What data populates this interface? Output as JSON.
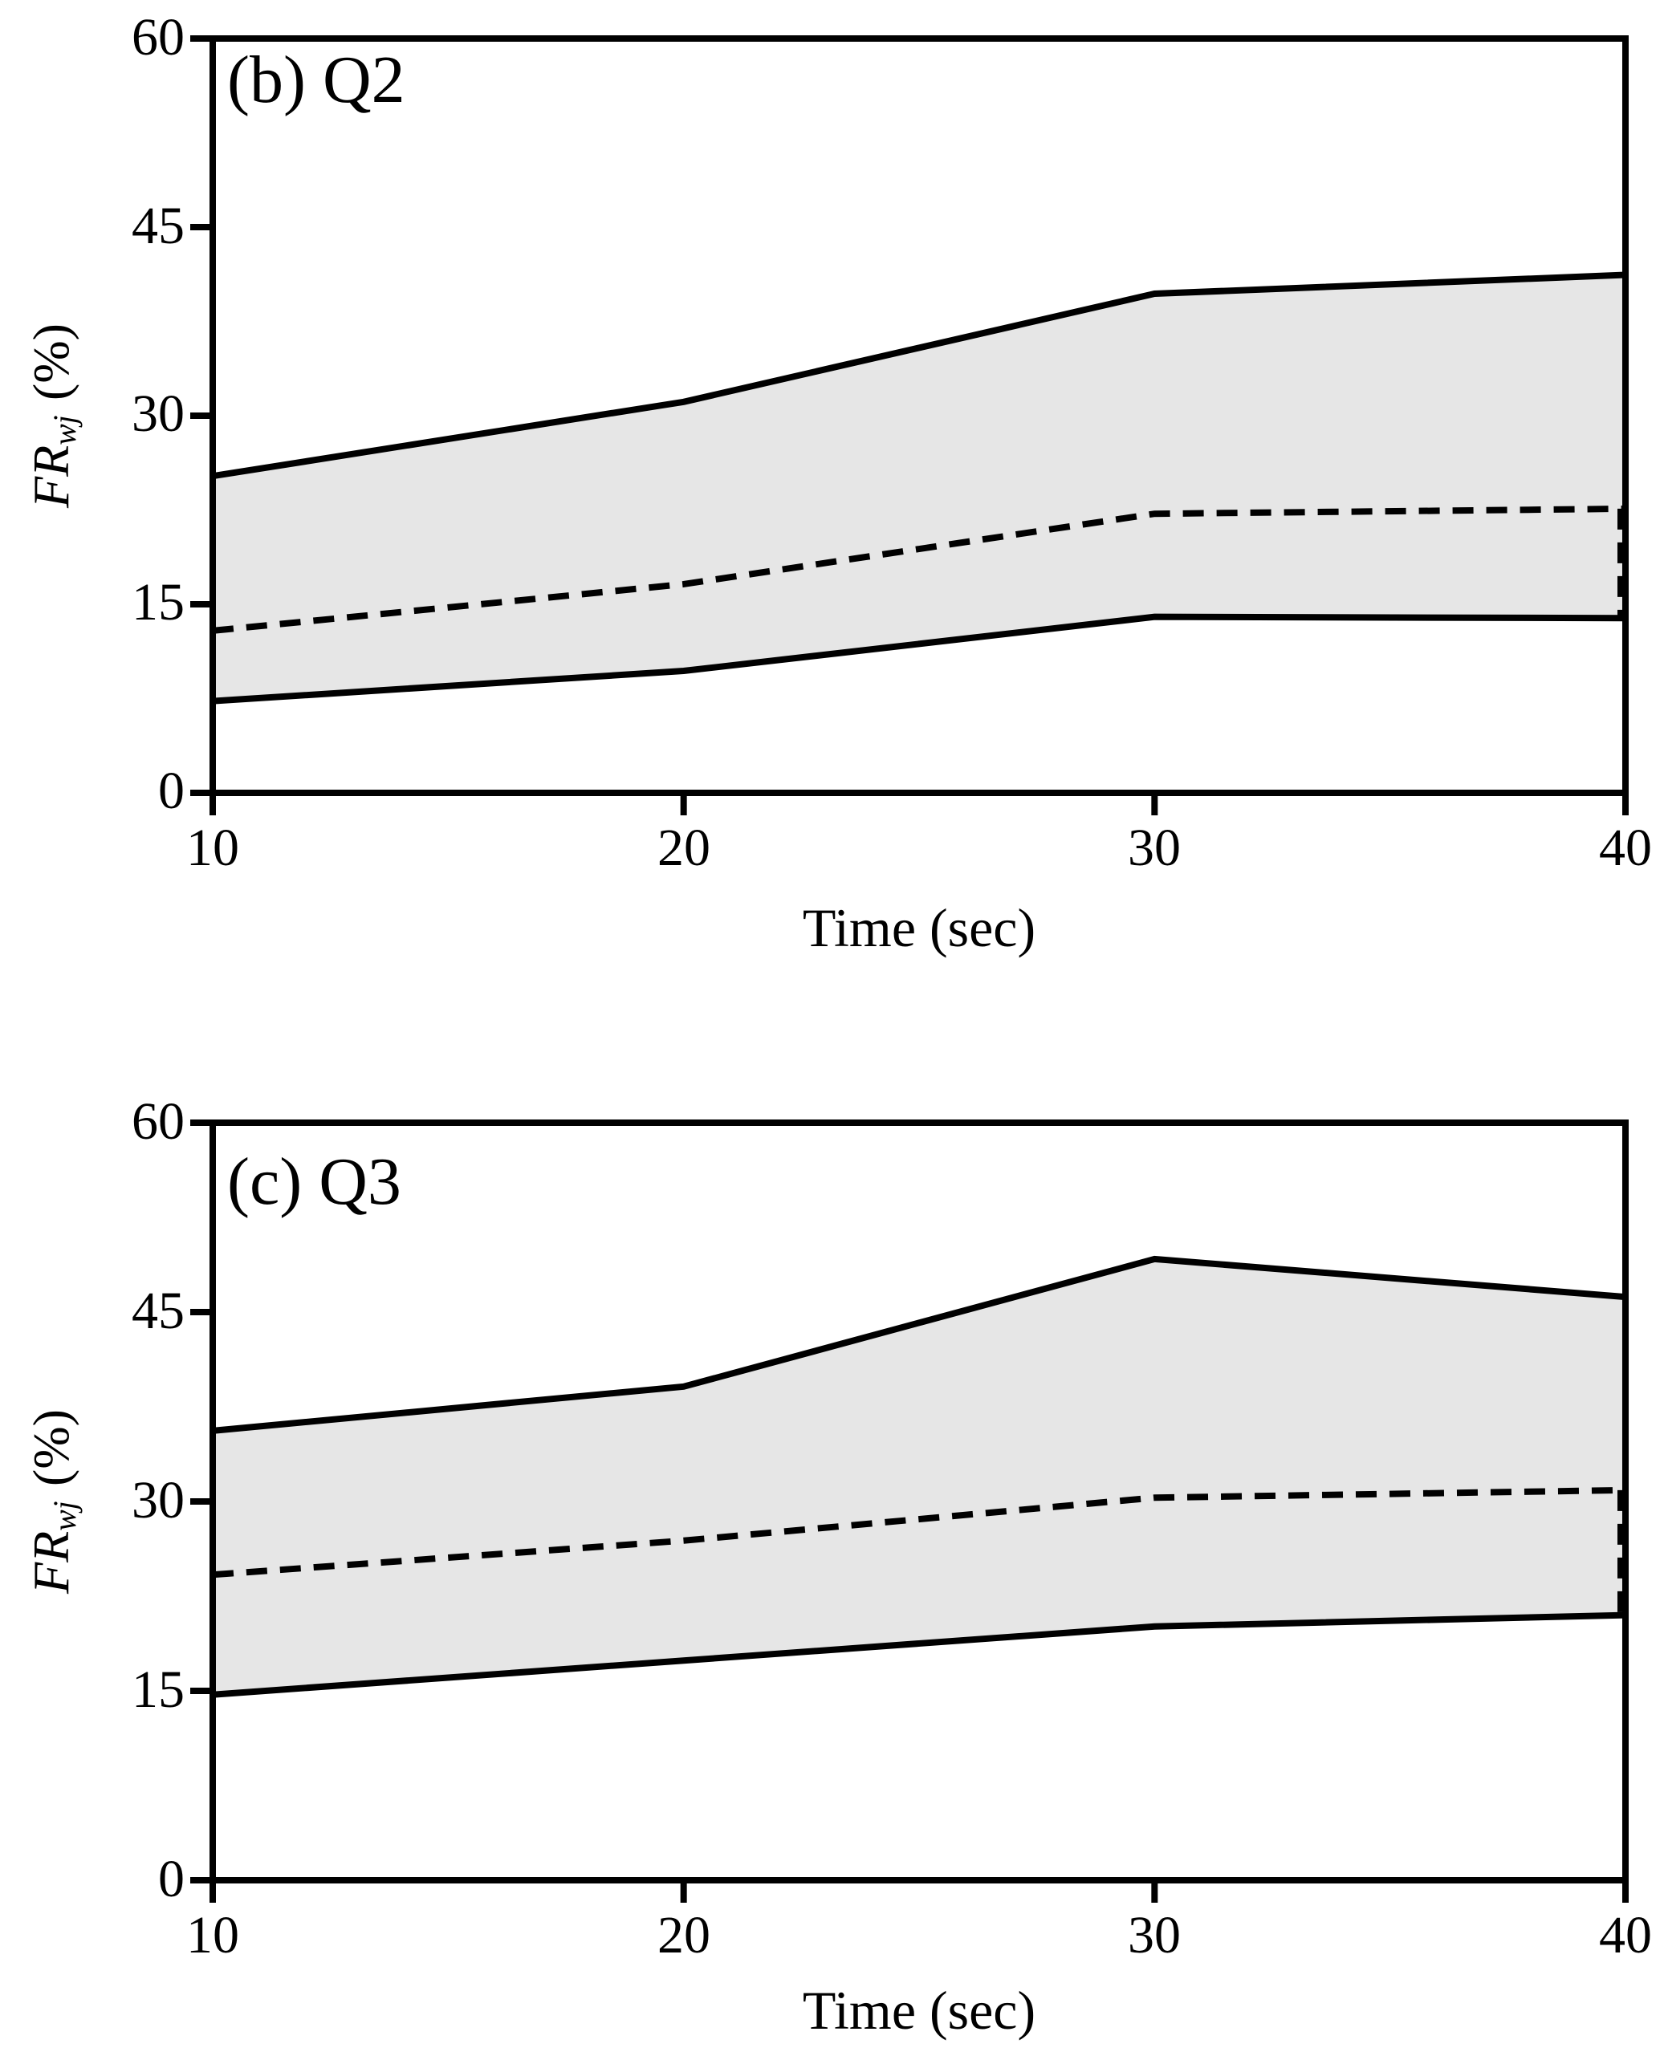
{
  "figure": {
    "background": "#ffffff",
    "panels": [
      "(b) Q2",
      "(c) Q3"
    ]
  },
  "chart_data": [
    {
      "type": "area",
      "title": "(b) Q2",
      "xlabel": "Time (sec)",
      "ylabel": "FRwj (%)",
      "ylabel_parts": {
        "main": "FR",
        "sub": "wj",
        "unit": " (%)"
      },
      "x": [
        10,
        20,
        30,
        40
      ],
      "series": [
        {
          "name": "upper bound",
          "line_style": "solid",
          "values": [
            25.2,
            31.1,
            39.7,
            41.2
          ]
        },
        {
          "name": "median",
          "line_style": "dashed",
          "values": [
            12.9,
            16.6,
            22.2,
            22.6
          ]
        },
        {
          "name": "lower bound",
          "line_style": "solid",
          "values": [
            7.3,
            9.7,
            14.0,
            13.9
          ]
        }
      ],
      "band": {
        "between": [
          "upper bound",
          "lower bound"
        ],
        "fill": "#e6e6e6"
      },
      "line_color": "#000000",
      "xlim": [
        10,
        40
      ],
      "ylim": [
        0,
        60
      ],
      "x_tick_values": [
        10,
        20,
        30,
        40
      ],
      "y_tick_values": [
        0,
        15,
        30,
        45,
        60
      ],
      "grid": false,
      "legend": "none"
    },
    {
      "type": "area",
      "title": "(c) Q3",
      "xlabel": "Time (sec)",
      "ylabel": "FRwj (%)",
      "ylabel_parts": {
        "main": "FR",
        "sub": "wj",
        "unit": " (%)"
      },
      "x": [
        10,
        20,
        30,
        40
      ],
      "series": [
        {
          "name": "upper bound",
          "line_style": "solid",
          "values": [
            35.6,
            39.1,
            49.2,
            46.2
          ]
        },
        {
          "name": "median",
          "line_style": "dashed",
          "values": [
            24.2,
            26.9,
            30.3,
            30.9
          ]
        },
        {
          "name": "lower bound",
          "line_style": "solid",
          "values": [
            14.7,
            17.4,
            20.1,
            21.0
          ]
        }
      ],
      "band": {
        "between": [
          "upper bound",
          "lower bound"
        ],
        "fill": "#e6e6e6"
      },
      "line_color": "#000000",
      "xlim": [
        10,
        40
      ],
      "ylim": [
        0,
        60
      ],
      "x_tick_values": [
        10,
        20,
        30,
        40
      ],
      "y_tick_values": [
        0,
        15,
        30,
        45,
        60
      ],
      "grid": false,
      "legend": "none"
    }
  ]
}
